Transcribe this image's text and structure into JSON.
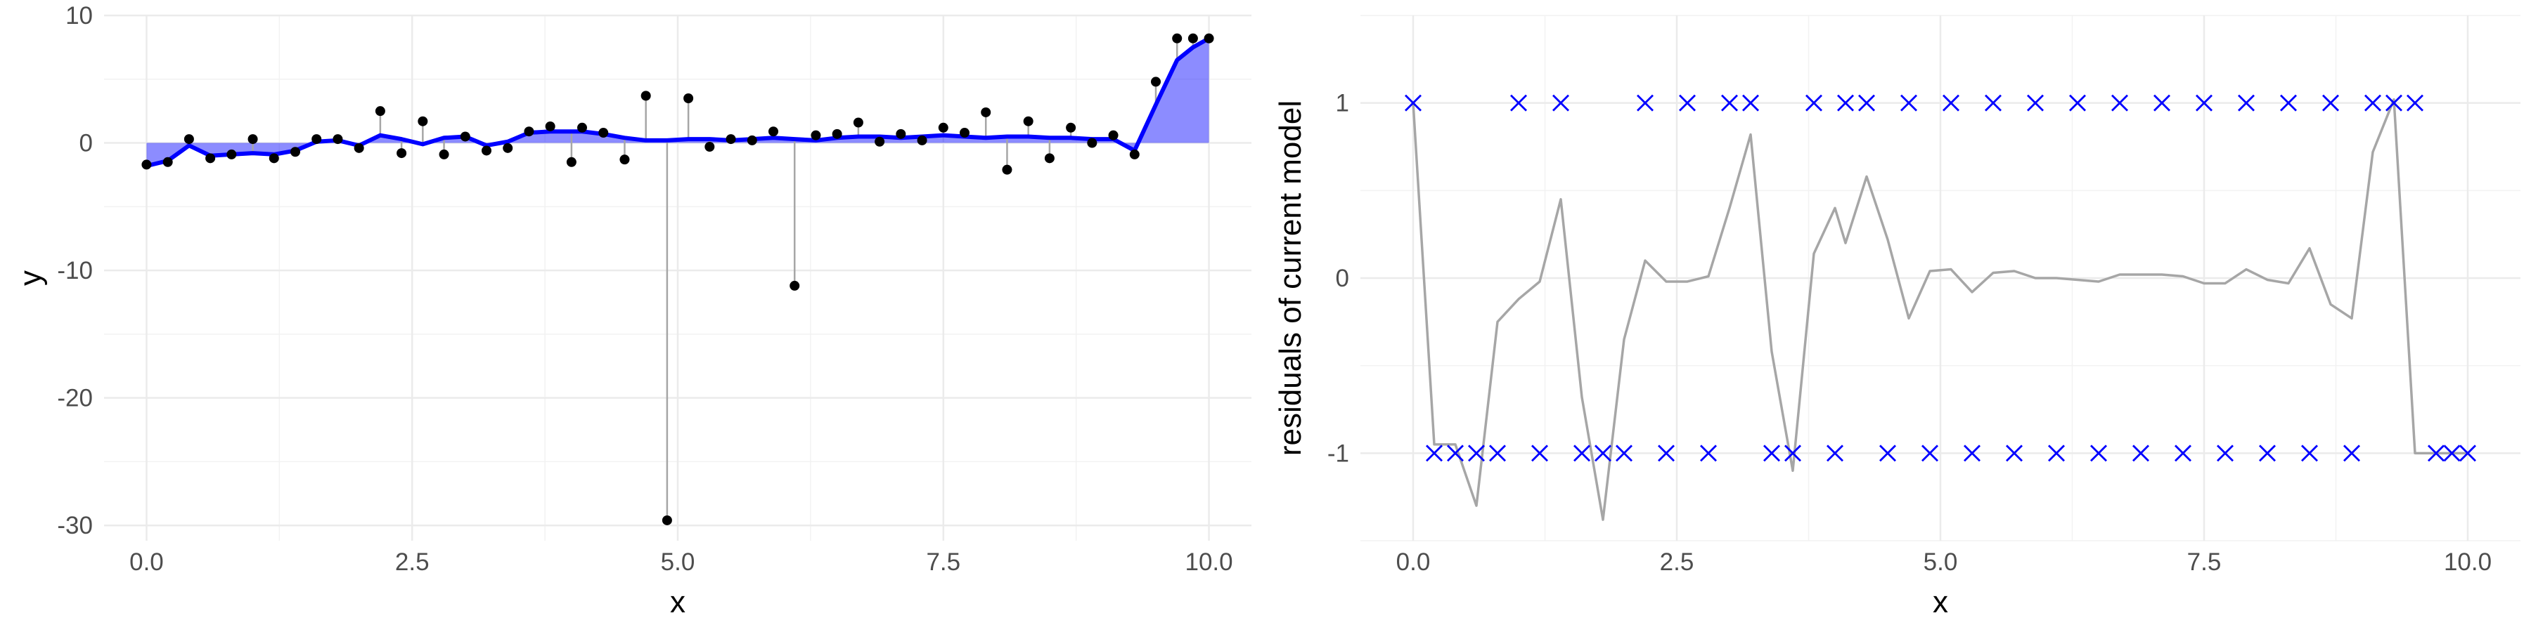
{
  "chart_data": [
    {
      "type": "scatter",
      "xlabel": "x",
      "ylabel": "y",
      "xlim": [
        -0.4,
        10.4
      ],
      "ylim": [
        -31.2,
        10
      ],
      "xticks": [
        0.0,
        2.5,
        5.0,
        7.5,
        10.0
      ],
      "xtick_labels": [
        "0.0",
        "2.5",
        "5.0",
        "7.5",
        "10.0"
      ],
      "yticks": [
        10,
        0,
        -10,
        -20,
        -30
      ],
      "ytick_labels": [
        "10",
        "0",
        "-10",
        "-20",
        "-30"
      ],
      "grid": true,
      "colors": {
        "points": "#000000",
        "fit": "#0000ff",
        "residual_segments": "#a6a6a6"
      },
      "series": [
        {
          "role": "observed points",
          "x": [
            0.0,
            0.2,
            0.4,
            0.6,
            0.8,
            1.0,
            1.2,
            1.4,
            1.6,
            1.8,
            2.0,
            2.2,
            2.4,
            2.6,
            2.8,
            3.0,
            3.2,
            3.4,
            3.6,
            3.8,
            4.0,
            4.1,
            4.3,
            4.5,
            4.7,
            4.9,
            5.1,
            5.3,
            5.5,
            5.7,
            5.9,
            6.1,
            6.3,
            6.5,
            6.7,
            6.9,
            7.1,
            7.3,
            7.5,
            7.7,
            7.9,
            8.1,
            8.3,
            8.5,
            8.7,
            8.9,
            9.1,
            9.3,
            9.5,
            9.7,
            9.85,
            10.0
          ],
          "y": [
            -1.7,
            -1.5,
            0.3,
            -1.2,
            -0.9,
            0.3,
            -1.2,
            -0.7,
            0.3,
            0.3,
            -0.4,
            2.5,
            -0.8,
            1.7,
            -0.9,
            0.5,
            -0.6,
            -0.4,
            0.9,
            1.3,
            -1.5,
            1.2,
            0.8,
            -1.3,
            3.7,
            -29.6,
            3.5,
            -0.3,
            0.3,
            0.2,
            0.9,
            -11.2,
            0.6,
            0.7,
            1.6,
            0.1,
            0.7,
            0.2,
            1.2,
            0.8,
            2.4,
            -2.1,
            1.7,
            -1.2,
            1.2,
            0.0,
            0.6,
            -0.9,
            4.8,
            8.2,
            8.2,
            8.2
          ]
        },
        {
          "role": "fitted curve",
          "x": [
            0.0,
            0.2,
            0.4,
            0.6,
            0.8,
            1.0,
            1.2,
            1.4,
            1.6,
            1.8,
            2.0,
            2.2,
            2.4,
            2.6,
            2.8,
            3.0,
            3.2,
            3.4,
            3.6,
            3.8,
            4.0,
            4.1,
            4.3,
            4.5,
            4.7,
            4.9,
            5.1,
            5.3,
            5.5,
            5.7,
            5.9,
            6.1,
            6.3,
            6.5,
            6.7,
            6.9,
            7.1,
            7.3,
            7.5,
            7.7,
            7.9,
            8.1,
            8.3,
            8.5,
            8.7,
            8.9,
            9.1,
            9.3,
            9.5,
            9.7,
            9.85,
            10.0
          ],
          "y": [
            -1.8,
            -1.4,
            -0.2,
            -1.0,
            -0.9,
            -0.8,
            -0.9,
            -0.6,
            0.1,
            0.2,
            -0.2,
            0.6,
            0.3,
            -0.1,
            0.4,
            0.5,
            -0.2,
            0.1,
            0.8,
            0.9,
            0.9,
            0.9,
            0.7,
            0.4,
            0.2,
            0.2,
            0.3,
            0.3,
            0.2,
            0.3,
            0.4,
            0.3,
            0.2,
            0.4,
            0.5,
            0.5,
            0.4,
            0.5,
            0.6,
            0.5,
            0.4,
            0.5,
            0.5,
            0.4,
            0.4,
            0.3,
            0.3,
            -0.6,
            3.0,
            6.5,
            7.5,
            8.2
          ]
        }
      ]
    },
    {
      "type": "scatter",
      "xlabel": "x",
      "ylabel": "residuals of current model",
      "xlim": [
        -0.5,
        10.5
      ],
      "ylim": [
        -1.5,
        1.5
      ],
      "xticks": [
        0.0,
        2.5,
        5.0,
        7.5,
        10.0
      ],
      "xtick_labels": [
        "0.0",
        "2.5",
        "5.0",
        "7.5",
        "10.0"
      ],
      "yticks": [
        1,
        0,
        -1
      ],
      "ytick_labels": [
        "1",
        "0",
        "-1"
      ],
      "grid": true,
      "colors": {
        "markers": "#0000ff",
        "line": "#a6a6a6"
      },
      "series": [
        {
          "role": "residual line",
          "x": [
            0.0,
            0.2,
            0.4,
            0.6,
            0.8,
            1.0,
            1.2,
            1.4,
            1.6,
            1.8,
            2.0,
            2.2,
            2.4,
            2.6,
            2.8,
            3.0,
            3.2,
            3.4,
            3.6,
            3.8,
            4.0,
            4.1,
            4.3,
            4.5,
            4.7,
            4.9,
            5.1,
            5.3,
            5.5,
            5.7,
            5.9,
            6.1,
            6.3,
            6.5,
            6.7,
            6.9,
            7.1,
            7.3,
            7.5,
            7.7,
            7.9,
            8.1,
            8.3,
            8.5,
            8.7,
            8.9,
            9.1,
            9.3,
            9.5,
            9.7,
            9.85,
            10.0
          ],
          "y": [
            1.0,
            -0.95,
            -0.95,
            -1.3,
            -0.25,
            -0.12,
            -0.02,
            0.45,
            -0.68,
            -1.38,
            -0.35,
            0.1,
            -0.02,
            -0.02,
            0.01,
            0.4,
            0.82,
            -0.42,
            -1.1,
            0.14,
            0.4,
            0.2,
            0.58,
            0.22,
            -0.23,
            0.04,
            0.05,
            -0.08,
            0.03,
            0.04,
            0.0,
            0.0,
            -0.01,
            -0.02,
            0.02,
            0.02,
            0.02,
            0.01,
            -0.03,
            -0.03,
            0.05,
            -0.01,
            -0.03,
            0.17,
            -0.15,
            -0.23,
            0.72,
            1.02,
            -1.0,
            -1.0,
            -1.0,
            -1.0
          ]
        },
        {
          "role": "sign markers",
          "x": [
            0.0,
            0.2,
            0.4,
            0.6,
            0.8,
            1.0,
            1.2,
            1.4,
            1.6,
            1.8,
            2.0,
            2.2,
            2.4,
            2.6,
            2.8,
            3.0,
            3.2,
            3.4,
            3.6,
            3.8,
            4.0,
            4.1,
            4.3,
            4.5,
            4.7,
            4.9,
            5.1,
            5.3,
            5.5,
            5.7,
            5.9,
            6.1,
            6.3,
            6.5,
            6.7,
            6.9,
            7.1,
            7.3,
            7.5,
            7.7,
            7.9,
            8.1,
            8.3,
            8.5,
            8.7,
            8.9,
            9.1,
            9.3,
            9.5,
            9.7,
            9.85,
            10.0
          ],
          "y": [
            1,
            -1,
            -1,
            -1,
            -1,
            1,
            -1,
            1,
            -1,
            -1,
            -1,
            1,
            -1,
            1,
            -1,
            1,
            1,
            -1,
            -1,
            1,
            -1,
            1,
            1,
            -1,
            1,
            -1,
            1,
            -1,
            1,
            -1,
            1,
            -1,
            1,
            -1,
            1,
            -1,
            1,
            -1,
            1,
            -1,
            1,
            -1,
            1,
            -1,
            1,
            -1,
            1,
            1,
            1,
            -1,
            -1,
            -1
          ]
        }
      ]
    }
  ]
}
